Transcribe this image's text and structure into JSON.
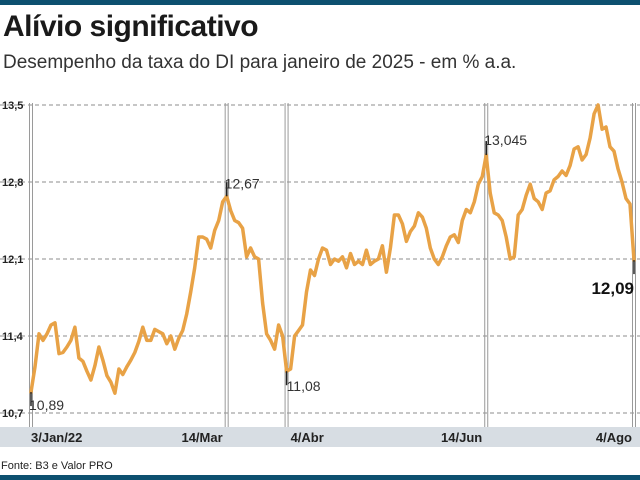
{
  "header": {
    "title": "Alívio significativo",
    "subtitle": "Desempenho da taxa do DI para janeiro de 2025 - em % a.a."
  },
  "footer": {
    "source": "Fonte: B3 e Valor PRO"
  },
  "colors": {
    "line": "#e8a246",
    "bar": "#0d5070",
    "grid": "#8c8c8c",
    "axis_band": "#d7dde3",
    "marker": "#222222"
  },
  "chart_data": {
    "type": "line",
    "title": "Alívio significativo",
    "subtitle": "Desempenho da taxa do DI para janeiro de 2025 - em % a.a.",
    "y_ticks": [
      "13,5",
      "12,8",
      "12,1",
      "11,4",
      "10,7"
    ],
    "y_tick_values": [
      13.5,
      12.8,
      12.1,
      11.4,
      10.7
    ],
    "ylim": [
      10.7,
      13.5
    ],
    "x_tick_labels": [
      "3/Jan/22",
      "14/Mar",
      "4/Abr",
      "14/Jun",
      "4/Ago"
    ],
    "x_tick_index": [
      0,
      49,
      64,
      114,
      151
    ],
    "grid": true,
    "annotations": [
      {
        "label": "10,89",
        "index": 0,
        "value": 10.89,
        "bold": false
      },
      {
        "label": "12,67",
        "index": 49,
        "value": 12.67,
        "bold": false
      },
      {
        "label": "11,08",
        "index": 64,
        "value": 11.08,
        "bold": false
      },
      {
        "label": "13,045",
        "index": 114,
        "value": 13.045,
        "bold": false
      },
      {
        "label": "12,09",
        "index": 151,
        "value": 12.09,
        "bold": true
      }
    ],
    "series": [
      {
        "values": [
          10.89,
          11.12,
          11.42,
          11.36,
          11.42,
          11.5,
          11.52,
          11.24,
          11.25,
          11.3,
          11.36,
          11.48,
          11.2,
          11.17,
          11.08,
          11.0,
          11.13,
          11.3,
          11.18,
          11.04,
          10.98,
          10.88,
          11.1,
          11.05,
          11.12,
          11.18,
          11.25,
          11.35,
          11.48,
          11.36,
          11.36,
          11.46,
          11.44,
          11.42,
          11.33,
          11.4,
          11.28,
          11.38,
          11.45,
          11.6,
          11.8,
          12.02,
          12.3,
          12.3,
          12.28,
          12.2,
          12.36,
          12.45,
          12.62,
          12.67,
          12.54,
          12.45,
          12.43,
          12.38,
          12.12,
          12.2,
          12.12,
          12.1,
          11.7,
          11.42,
          11.36,
          11.28,
          11.5,
          11.4,
          11.08,
          11.1,
          11.4,
          11.45,
          11.5,
          11.8,
          12.0,
          11.95,
          12.1,
          12.2,
          12.18,
          12.05,
          12.1,
          12.08,
          12.12,
          12.02,
          12.15,
          12.05,
          12.08,
          12.05,
          12.18,
          12.05,
          12.08,
          12.1,
          12.22,
          11.98,
          12.2,
          12.5,
          12.5,
          12.42,
          12.26,
          12.35,
          12.4,
          12.52,
          12.48,
          12.38,
          12.2,
          12.1,
          12.05,
          12.12,
          12.22,
          12.3,
          12.32,
          12.25,
          12.45,
          12.55,
          12.52,
          12.62,
          12.78,
          12.85,
          13.045,
          12.7,
          12.52,
          12.5,
          12.45,
          12.3,
          12.1,
          12.12,
          12.5,
          12.55,
          12.68,
          12.78,
          12.65,
          12.62,
          12.55,
          12.7,
          12.72,
          12.82,
          12.85,
          12.9,
          12.86,
          12.95,
          13.1,
          13.12,
          13.0,
          13.05,
          13.2,
          13.42,
          13.5,
          13.28,
          13.3,
          13.12,
          13.08,
          12.92,
          12.8,
          12.65,
          12.6,
          12.09
        ]
      }
    ]
  }
}
